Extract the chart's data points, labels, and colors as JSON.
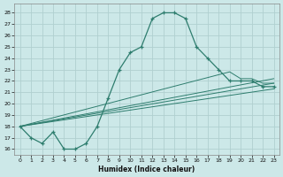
{
  "xlabel": "Humidex (Indice chaleur)",
  "bg_color": "#cce8e8",
  "line_color": "#2e7d6e",
  "grid_color": "#b0d0d0",
  "xlim": [
    -0.5,
    23.5
  ],
  "ylim": [
    15.5,
    28.8
  ],
  "xticks": [
    0,
    1,
    2,
    3,
    4,
    5,
    6,
    7,
    8,
    9,
    10,
    11,
    12,
    13,
    14,
    15,
    16,
    17,
    18,
    19,
    20,
    21,
    22,
    23
  ],
  "yticks": [
    16,
    17,
    18,
    19,
    20,
    21,
    22,
    23,
    24,
    25,
    26,
    27,
    28
  ],
  "main_x": [
    0,
    1,
    2,
    3,
    4,
    5,
    6,
    7,
    8,
    9,
    10,
    11,
    12,
    13,
    14,
    15,
    16,
    17,
    18,
    19,
    20,
    21,
    22,
    23
  ],
  "main_y": [
    18,
    17,
    16.5,
    17.5,
    16,
    16,
    16.5,
    18,
    20.5,
    23,
    24.5,
    25,
    27.5,
    28,
    28,
    27.5,
    25,
    24,
    23,
    22,
    22,
    22,
    21.5,
    21.5
  ],
  "line2_x": [
    0,
    23
  ],
  "line2_y": [
    18,
    21.8
  ],
  "line3_x": [
    0,
    19,
    20,
    21,
    22,
    23
  ],
  "line3_y": [
    18,
    22.8,
    22.2,
    22.2,
    21.8,
    21.8
  ],
  "line4_x": [
    0,
    23
  ],
  "line4_y": [
    18,
    22.2
  ],
  "line5_x": [
    0,
    23
  ],
  "line5_y": [
    18,
    21.3
  ]
}
